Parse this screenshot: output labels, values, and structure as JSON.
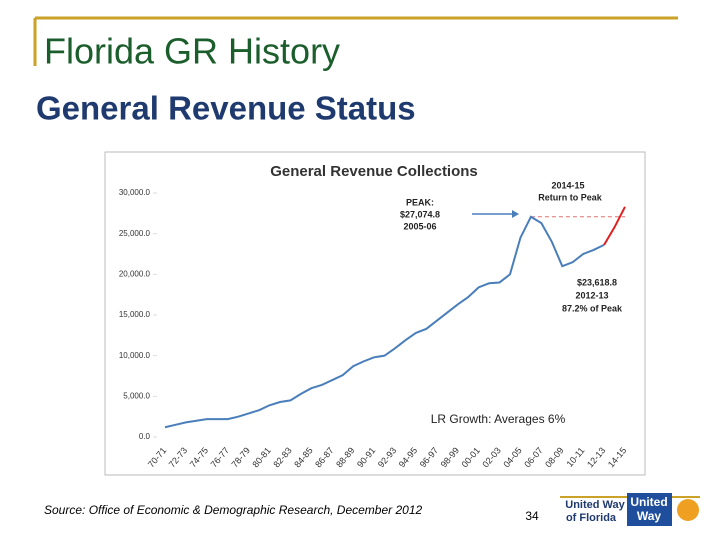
{
  "slide": {
    "title": "Florida GR History",
    "subtitle": "General Revenue Status",
    "source": "Source:  Office of Economic & Demographic Research, December 2012",
    "page_number": "34",
    "logo_lines": [
      "United Way",
      "of Florida"
    ],
    "badge_lines": [
      "United",
      "Way"
    ]
  },
  "chart_data": {
    "type": "line",
    "title": "General Revenue Collections",
    "categories": [
      "70-71",
      null,
      "72-73",
      null,
      "74-75",
      null,
      "76-77",
      null,
      "78-79",
      null,
      "80-81",
      null,
      "82-83",
      null,
      "84-85",
      null,
      "86-87",
      null,
      "88-89",
      null,
      "90-91",
      null,
      "92-93",
      null,
      "94-95",
      null,
      "96-97",
      null,
      "98-99",
      null,
      "00-01",
      null,
      "02-03",
      null,
      "04-05",
      null,
      "06-07",
      null,
      "08-09",
      null,
      "10-11",
      null,
      "12-13",
      null,
      "14-15"
    ],
    "series": [
      {
        "color": "#4a7ebb",
        "values": [
          1200,
          1500,
          1800,
          2000,
          2200,
          2200,
          2200,
          2500,
          2900,
          3300,
          3900,
          4300,
          4500,
          5300,
          6000,
          6400,
          7000,
          7600,
          8700,
          9300,
          9800,
          10000,
          10900,
          11900,
          12800,
          13300,
          14300,
          15300,
          16300,
          17200,
          18400,
          18900,
          19000,
          20000,
          24500,
          27074.8,
          26300,
          24000,
          21000,
          21500,
          22500,
          23000,
          23618.8,
          null,
          null
        ],
        "value_labels": [
          null,
          null,
          null,
          null,
          null,
          null,
          null,
          null,
          null,
          null,
          null,
          null,
          null,
          null,
          null,
          null,
          null,
          null,
          null,
          null,
          null,
          null,
          null,
          null,
          null,
          null,
          null,
          null,
          null,
          null,
          null,
          null,
          null,
          null,
          null,
          "$27,074.8",
          null,
          null,
          null,
          null,
          null,
          null,
          "$23,618.8",
          null,
          null
        ]
      },
      {
        "color": "#e02020",
        "values": [
          null,
          null,
          null,
          null,
          null,
          null,
          null,
          null,
          null,
          null,
          null,
          null,
          null,
          null,
          null,
          null,
          null,
          null,
          null,
          null,
          null,
          null,
          null,
          null,
          null,
          null,
          null,
          null,
          null,
          null,
          null,
          null,
          null,
          null,
          null,
          null,
          null,
          null,
          null,
          null,
          null,
          null,
          23618.8,
          25800,
          28300
        ]
      }
    ],
    "annotations": [
      "PEAK:",
      "2005-06",
      "2014-15",
      "Return to Peak",
      "2012-13",
      "87.2% of Peak",
      "LR Growth: Averages 6%"
    ],
    "ylim": [
      0,
      30000
    ],
    "yticks": [
      {
        "value": 0,
        "label": "0.0"
      },
      {
        "value": 5000,
        "label": "5,000.0"
      },
      {
        "value": 10000,
        "label": "10,000.0"
      },
      {
        "value": 15000,
        "label": "15,000.0"
      },
      {
        "value": 20000,
        "label": "20,000.0"
      },
      {
        "value": 25000,
        "label": "25,000.0"
      },
      {
        "value": 30000,
        "label": "30,000.0"
      }
    ],
    "grid": false
  }
}
